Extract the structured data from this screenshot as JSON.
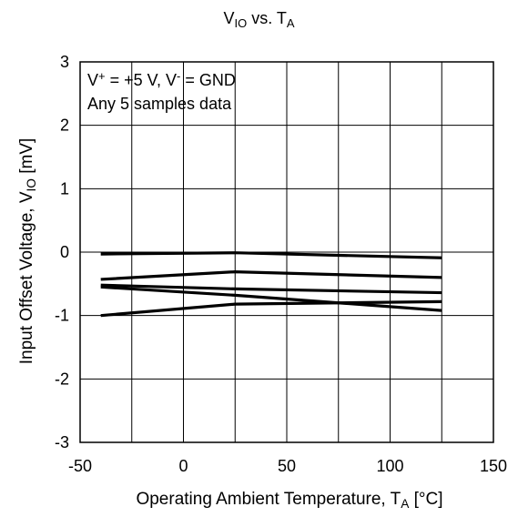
{
  "chart_data": {
    "type": "line",
    "title": {
      "main": "V",
      "main_sub": "IO",
      "mid": " vs. T",
      "mid_sub": "A"
    },
    "xlabel": {
      "main": "Operating Ambient Temperature, T",
      "sub": "A",
      "unit": " [°C]"
    },
    "ylabel": {
      "main": "Input Offset Voltage, V",
      "sub": "IO",
      "unit": " [mV]"
    },
    "annotations": {
      "line1": {
        "a": "V",
        "a_sup": "+",
        "b": " = +5 V, V",
        "b_sup": "-",
        "c": " = GND"
      },
      "line2": "Any 5 samples data"
    },
    "xlim": [
      -50,
      150
    ],
    "ylim": [
      -3,
      3
    ],
    "x_ticks": [
      -50,
      0,
      50,
      100,
      150
    ],
    "x_tick_labels": [
      "-50",
      "0",
      "50",
      "100",
      "150"
    ],
    "x_gridlines": [
      -25,
      0,
      25,
      50,
      75,
      100,
      125
    ],
    "y_ticks": [
      -3,
      -2,
      -1,
      0,
      1,
      2,
      3
    ],
    "y_tick_labels": [
      "-3",
      "-2",
      "-1",
      "0",
      "1",
      "2",
      "3"
    ],
    "grid": true,
    "x": [
      -40,
      25,
      125
    ],
    "series": [
      {
        "values": [
          -0.03,
          -0.01,
          -0.09
        ]
      },
      {
        "values": [
          -0.43,
          -0.31,
          -0.4
        ]
      },
      {
        "values": [
          -0.52,
          -0.58,
          -0.64
        ]
      },
      {
        "values": [
          -0.55,
          -0.68,
          -0.92
        ]
      },
      {
        "values": [
          -1.0,
          -0.82,
          -0.78
        ]
      }
    ],
    "line_color": "#000000"
  }
}
